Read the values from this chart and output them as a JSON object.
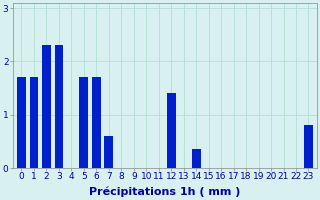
{
  "hours": [
    0,
    1,
    2,
    3,
    4,
    5,
    6,
    7,
    8,
    9,
    10,
    11,
    12,
    13,
    14,
    15,
    16,
    17,
    18,
    19,
    20,
    21,
    22,
    23
  ],
  "values": [
    1.7,
    1.7,
    2.3,
    2.3,
    0.0,
    1.7,
    1.7,
    0.6,
    0.0,
    0.0,
    0.0,
    0.0,
    1.4,
    0.0,
    0.35,
    0.0,
    0.0,
    0.0,
    0.0,
    0.0,
    0.0,
    0.0,
    0.0,
    0.8
  ],
  "bar_color": "#0020cc",
  "background_color": "#d8f0f0",
  "grid_color": "#aaddcc",
  "xlabel": "Précipitations 1h ( mm )",
  "ylim": [
    0,
    3.1
  ],
  "yticks": [
    0,
    1,
    2,
    3
  ],
  "xlabel_fontsize": 8,
  "tick_fontsize": 6.5,
  "tick_color": "#0000aa",
  "xlabel_color": "#0000aa"
}
